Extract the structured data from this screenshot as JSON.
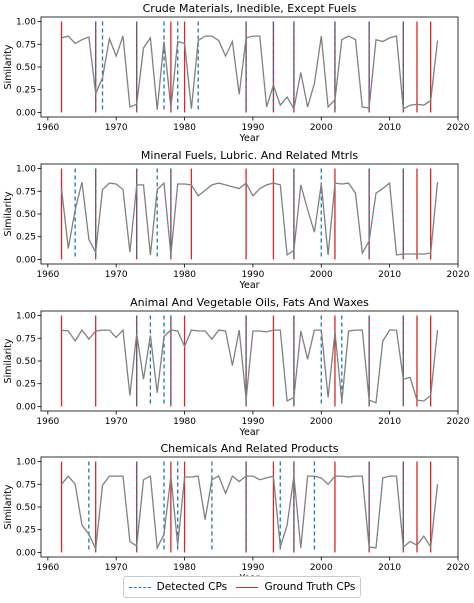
{
  "chart_data": [
    {
      "type": "line",
      "title": "Crude Materials, Inedible, Except Fuels",
      "xlabel": "Year",
      "ylabel": "Similarity",
      "xlim": [
        1959,
        2020
      ],
      "ylim": [
        -0.05,
        1.05
      ],
      "xticks": [
        "1960",
        "1970",
        "1980",
        "1990",
        "2000",
        "2010",
        "2020"
      ],
      "yticks": [
        "0.00",
        "0.25",
        "0.50",
        "0.75",
        "1.00"
      ],
      "series": [
        {
          "color": "#808080",
          "x": [
            1962,
            1963,
            1964,
            1965,
            1966,
            1967,
            1968,
            1969,
            1970,
            1971,
            1972,
            1973,
            1974,
            1975,
            1976,
            1977,
            1978,
            1979,
            1980,
            1981,
            1982,
            1983,
            1984,
            1985,
            1986,
            1987,
            1988,
            1989,
            1990,
            1991,
            1992,
            1993,
            1994,
            1995,
            1996,
            1997,
            1998,
            1999,
            2000,
            2001,
            2002,
            2003,
            2004,
            2005,
            2006,
            2007,
            2008,
            2009,
            2010,
            2011,
            2012,
            2013,
            2014,
            2015,
            2016,
            2017
          ],
          "y": [
            0.82,
            0.84,
            0.76,
            0.8,
            0.83,
            0.21,
            0.38,
            0.81,
            0.62,
            0.84,
            0.06,
            0.09,
            0.71,
            0.82,
            0.03,
            0.78,
            0.05,
            0.78,
            0.76,
            0.04,
            0.79,
            0.84,
            0.84,
            0.79,
            0.62,
            0.78,
            0.2,
            0.82,
            0.84,
            0.84,
            0.06,
            0.3,
            0.08,
            0.17,
            0.04,
            0.44,
            0.06,
            0.32,
            0.84,
            0.06,
            0.14,
            0.8,
            0.84,
            0.8,
            0.06,
            0.05,
            0.8,
            0.78,
            0.82,
            0.84,
            0.04,
            0.08,
            0.09,
            0.08,
            0.13,
            0.79
          ]
        }
      ],
      "detected_cps": [
        1967,
        1968,
        1973,
        1977,
        1979,
        1982,
        1989,
        1993,
        1996,
        2002,
        2007,
        2012
      ],
      "ground_truth_cps": [
        1962,
        1967,
        1973,
        1978,
        1980,
        1989,
        1993,
        1996,
        2002,
        2007,
        2012,
        2014,
        2016
      ]
    },
    {
      "type": "line",
      "title": "Mineral Fuels, Lubric. And Related Mtrls",
      "xlabel": "Year",
      "ylabel": "Similarity",
      "xlim": [
        1959,
        2020
      ],
      "ylim": [
        -0.05,
        1.05
      ],
      "xticks": [
        "1960",
        "1970",
        "1980",
        "1990",
        "2000",
        "2010",
        "2020"
      ],
      "yticks": [
        "0.00",
        "0.25",
        "0.50",
        "0.75",
        "1.00"
      ],
      "series": [
        {
          "color": "#808080",
          "x": [
            1962,
            1963,
            1964,
            1965,
            1966,
            1967,
            1968,
            1969,
            1970,
            1971,
            1972,
            1973,
            1974,
            1975,
            1976,
            1977,
            1978,
            1979,
            1980,
            1981,
            1982,
            1983,
            1984,
            1985,
            1986,
            1987,
            1988,
            1989,
            1990,
            1991,
            1992,
            1993,
            1994,
            1995,
            1996,
            1997,
            1998,
            1999,
            2000,
            2001,
            2002,
            2003,
            2004,
            2005,
            2006,
            2007,
            2008,
            2009,
            2010,
            2011,
            2012,
            2013,
            2014,
            2015,
            2016,
            2017
          ],
          "y": [
            0.78,
            0.12,
            0.55,
            0.85,
            0.22,
            0.08,
            0.77,
            0.84,
            0.83,
            0.77,
            0.08,
            0.82,
            0.82,
            0.05,
            0.77,
            0.84,
            0.05,
            0.83,
            0.83,
            0.82,
            0.7,
            0.76,
            0.82,
            0.84,
            0.82,
            0.8,
            0.78,
            0.84,
            0.7,
            0.78,
            0.82,
            0.84,
            0.82,
            0.05,
            0.1,
            0.82,
            0.55,
            0.3,
            0.83,
            0.05,
            0.84,
            0.83,
            0.84,
            0.73,
            0.07,
            0.2,
            0.73,
            0.78,
            0.84,
            0.05,
            0.06,
            0.06,
            0.06,
            0.06,
            0.07,
            0.85
          ]
        }
      ],
      "detected_cps": [
        1964,
        1967,
        1973,
        1976,
        1978,
        1996,
        2000,
        2007,
        2012
      ],
      "ground_truth_cps": [
        1962,
        1967,
        1973,
        1978,
        1981,
        1989,
        1993,
        1996,
        2002,
        2007,
        2012,
        2014,
        2016
      ]
    },
    {
      "type": "line",
      "title": "Animal And Vegetable Oils, Fats And Waxes",
      "xlabel": "Year",
      "ylabel": "Similarity",
      "xlim": [
        1959,
        2020
      ],
      "ylim": [
        -0.05,
        1.05
      ],
      "xticks": [
        "1960",
        "1970",
        "1980",
        "1990",
        "2000",
        "2010",
        "2020"
      ],
      "yticks": [
        "0.00",
        "0.25",
        "0.50",
        "0.75",
        "1.00"
      ],
      "series": [
        {
          "color": "#808080",
          "x": [
            1962,
            1963,
            1964,
            1965,
            1966,
            1967,
            1968,
            1969,
            1970,
            1971,
            1972,
            1973,
            1974,
            1975,
            1976,
            1977,
            1978,
            1979,
            1980,
            1981,
            1982,
            1983,
            1984,
            1985,
            1986,
            1987,
            1988,
            1989,
            1990,
            1991,
            1992,
            1993,
            1994,
            1995,
            1996,
            1997,
            1998,
            1999,
            2000,
            2001,
            2002,
            2003,
            2004,
            2005,
            2006,
            2007,
            2008,
            2009,
            2010,
            2011,
            2012,
            2013,
            2014,
            2015,
            2016,
            2017
          ],
          "y": [
            0.84,
            0.83,
            0.72,
            0.84,
            0.74,
            0.83,
            0.84,
            0.84,
            0.76,
            0.84,
            0.12,
            0.8,
            0.3,
            0.78,
            0.15,
            0.77,
            0.84,
            0.83,
            0.66,
            0.84,
            0.83,
            0.83,
            0.74,
            0.84,
            0.83,
            0.45,
            0.84,
            0.08,
            0.83,
            0.83,
            0.82,
            0.84,
            0.84,
            0.06,
            0.1,
            0.83,
            0.52,
            0.84,
            0.84,
            0.1,
            0.82,
            0.05,
            0.83,
            0.84,
            0.84,
            0.07,
            0.04,
            0.72,
            0.84,
            0.84,
            0.3,
            0.32,
            0.07,
            0.06,
            0.12,
            0.84
          ]
        }
      ],
      "detected_cps": [
        1973,
        1975,
        1977,
        1978,
        1989,
        1996,
        2000,
        2003,
        2007,
        2012
      ],
      "ground_truth_cps": [
        1962,
        1967,
        1973,
        1978,
        1980,
        1989,
        1993,
        1996,
        2002,
        2007,
        2012,
        2014,
        2016
      ]
    },
    {
      "type": "line",
      "title": "Chemicals And Related Products",
      "xlabel": "Year",
      "ylabel": "Similarity",
      "xlim": [
        1959,
        2020
      ],
      "ylim": [
        -0.05,
        1.05
      ],
      "xticks": [
        "1960",
        "1970",
        "1980",
        "1990",
        "2000",
        "2010",
        "2020"
      ],
      "yticks": [
        "0.00",
        "0.25",
        "0.50",
        "0.75",
        "1.00"
      ],
      "series": [
        {
          "color": "#808080",
          "x": [
            1962,
            1963,
            1964,
            1965,
            1966,
            1967,
            1968,
            1969,
            1970,
            1971,
            1972,
            1973,
            1974,
            1975,
            1976,
            1977,
            1978,
            1979,
            1980,
            1981,
            1982,
            1983,
            1984,
            1985,
            1986,
            1987,
            1988,
            1989,
            1990,
            1991,
            1992,
            1993,
            1994,
            1995,
            1996,
            1997,
            1998,
            1999,
            2000,
            2001,
            2002,
            2003,
            2004,
            2005,
            2006,
            2007,
            2008,
            2009,
            2010,
            2011,
            2012,
            2013,
            2014,
            2015,
            2016,
            2017
          ],
          "y": [
            0.75,
            0.84,
            0.75,
            0.3,
            0.2,
            0.04,
            0.74,
            0.84,
            0.84,
            0.84,
            0.12,
            0.07,
            0.8,
            0.84,
            0.05,
            0.2,
            0.84,
            0.08,
            0.83,
            0.83,
            0.84,
            0.36,
            0.8,
            0.84,
            0.65,
            0.84,
            0.78,
            0.84,
            0.84,
            0.8,
            0.82,
            0.84,
            0.06,
            0.3,
            0.84,
            0.05,
            0.84,
            0.84,
            0.82,
            0.75,
            0.84,
            0.84,
            0.83,
            0.84,
            0.84,
            0.06,
            0.05,
            0.82,
            0.84,
            0.84,
            0.06,
            0.12,
            0.08,
            0.18,
            0.06,
            0.75
          ]
        }
      ],
      "detected_cps": [
        1966,
        1973,
        1977,
        1979,
        1984,
        1989,
        1994,
        1996,
        1999,
        2007,
        2012
      ],
      "ground_truth_cps": [
        1962,
        1967,
        1973,
        1978,
        1980,
        1989,
        1993,
        1996,
        2002,
        2007,
        2012,
        2014,
        2016
      ]
    }
  ],
  "legend": {
    "placement": "bottom-center",
    "detected_label": "Detected CPs",
    "detected_color": "#1f77b4",
    "ground_truth_label": "Ground Truth CPs",
    "ground_truth_color": "#d62728"
  }
}
